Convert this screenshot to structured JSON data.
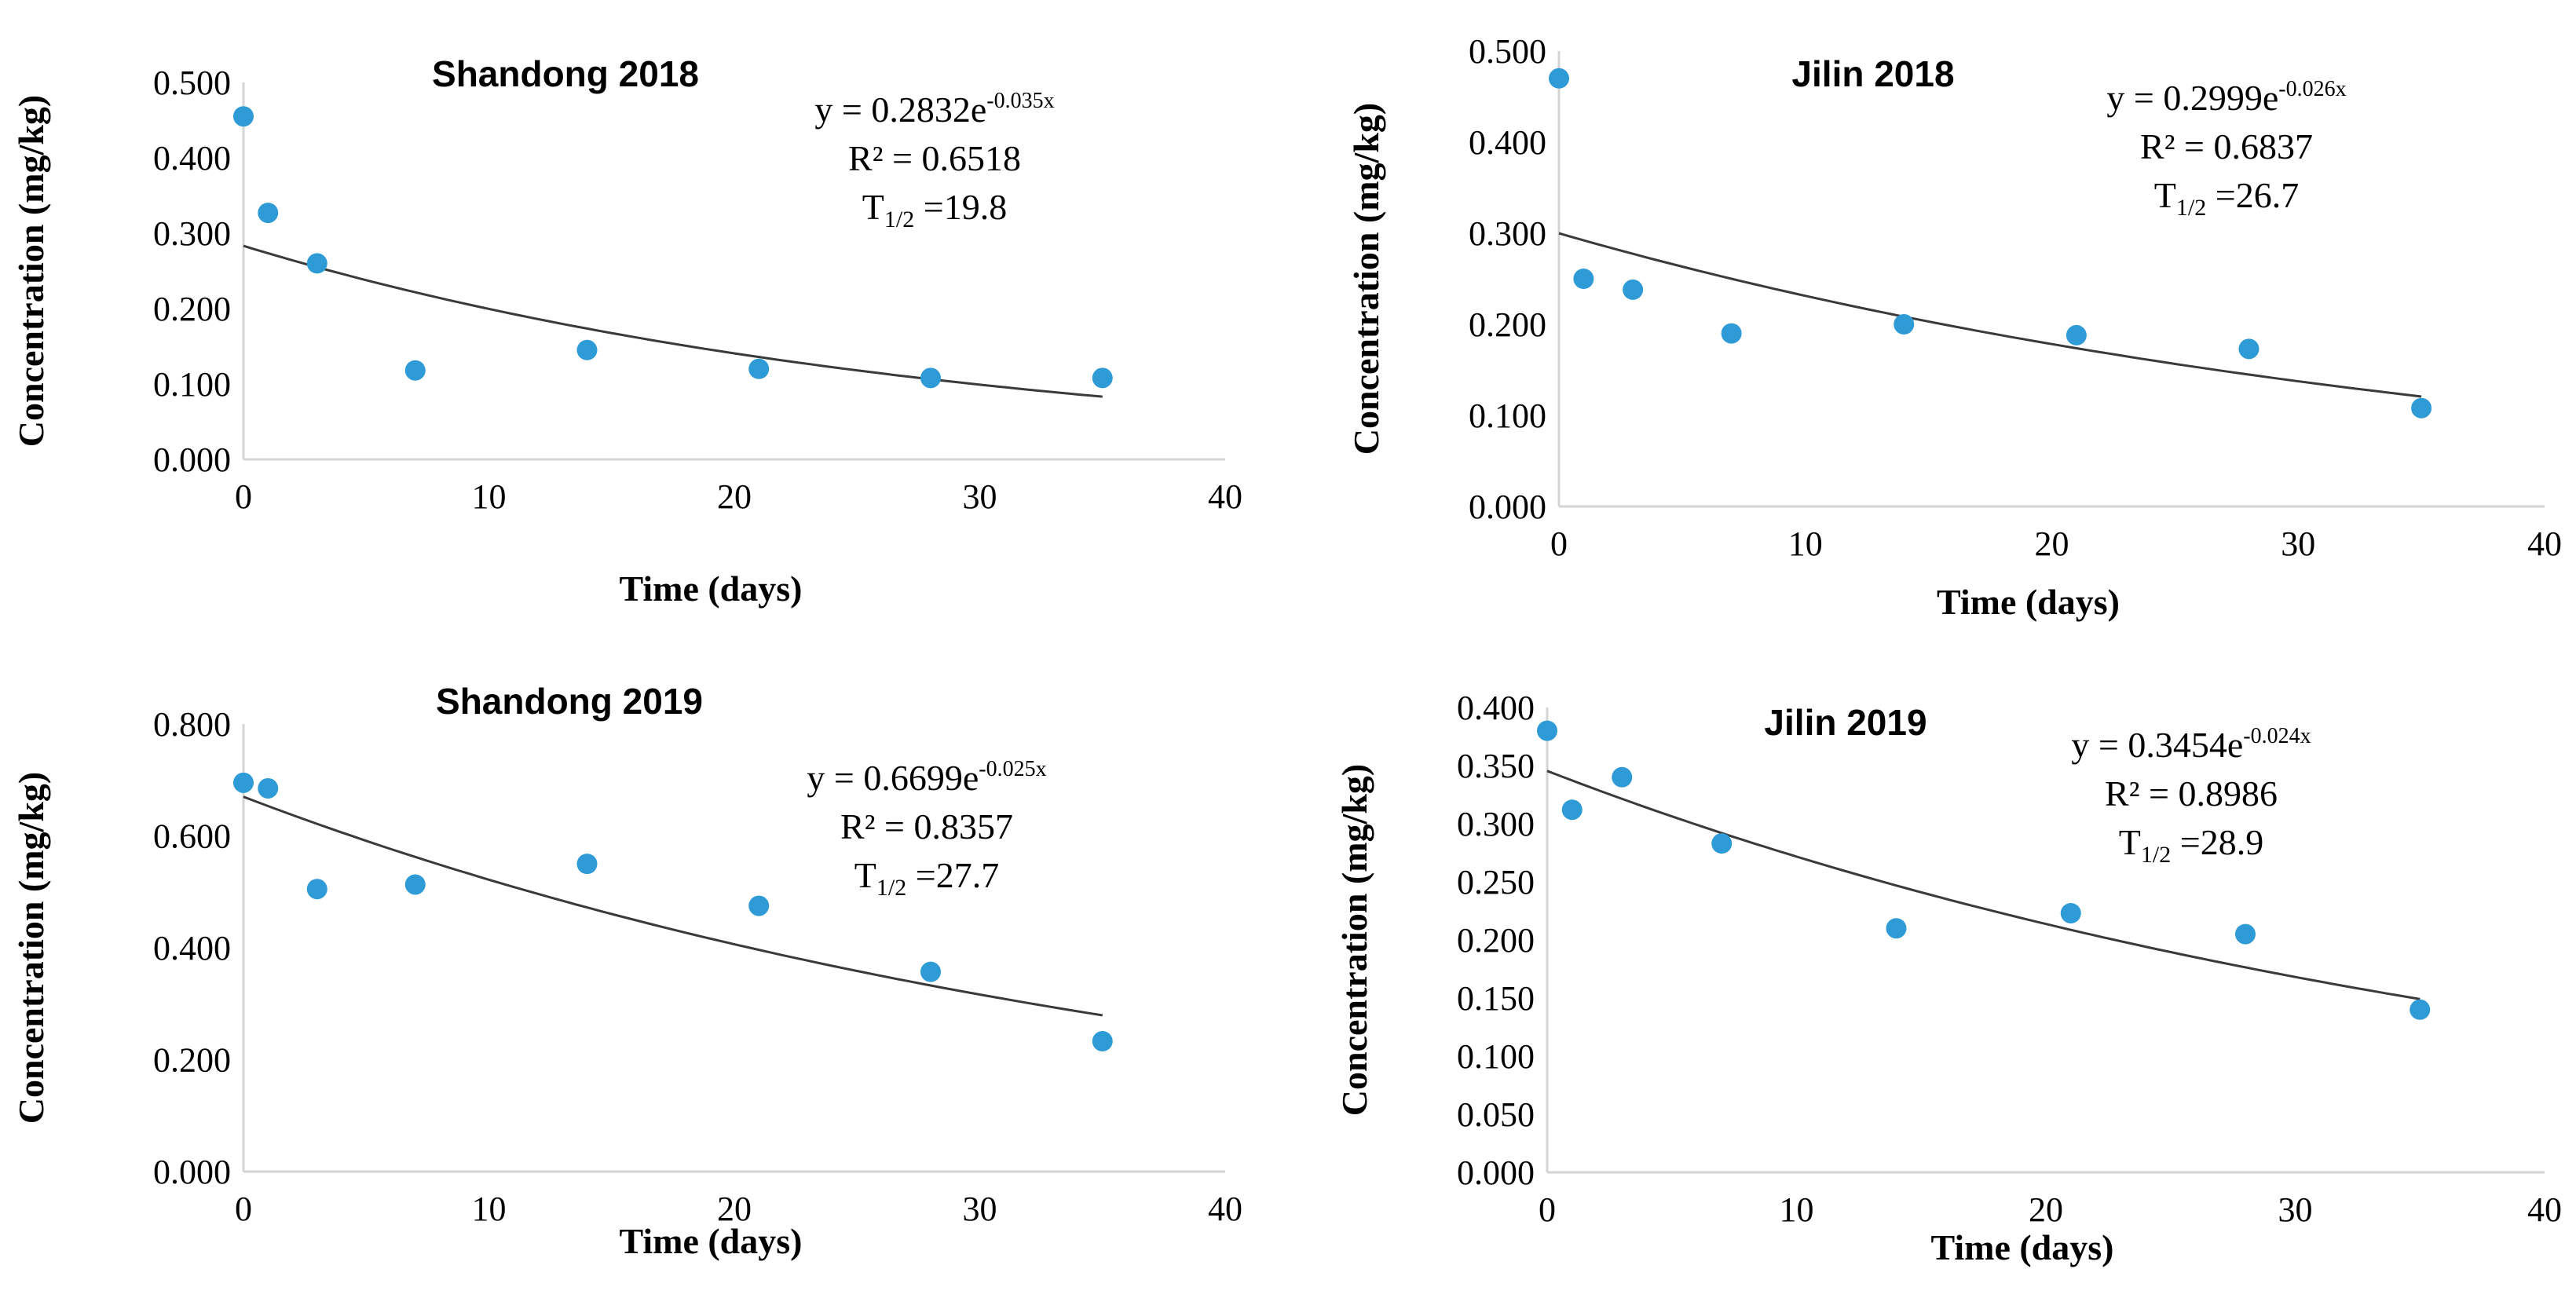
{
  "colors": {
    "point": "#2e9bd6",
    "trend": "#3a3a3a",
    "axis": "#d4d4d4"
  },
  "chart_data": [
    {
      "type": "scatter",
      "title": "Shandong 2018",
      "xlabel": "Time (days)",
      "ylabel": "Concentration (mg/kg)",
      "xlim": [
        0,
        40
      ],
      "ylim": [
        0,
        0.5
      ],
      "xticks": [
        "0",
        "10",
        "20",
        "30",
        "40"
      ],
      "yticks": [
        "0.000",
        "0.100",
        "0.200",
        "0.300",
        "0.400",
        "0.500"
      ],
      "x": [
        0,
        1,
        3,
        7,
        14,
        21,
        28,
        35
      ],
      "y": [
        0.455,
        0.327,
        0.26,
        0.118,
        0.145,
        0.12,
        0.108,
        0.108
      ],
      "trendline": {
        "type": "exponential",
        "a": 0.2832,
        "b": -0.035
      },
      "equation": {
        "prefix": "y = 0.2832e",
        "exponent": "-0.035x"
      },
      "r2": "R² = 0.6518",
      "half_life": {
        "t": "T",
        "sub": "1/2",
        "value": " =19.8"
      },
      "grid": false
    },
    {
      "type": "scatter",
      "title": "Jilin 2018",
      "xlabel": "Time (days)",
      "ylabel": "Concentration (mg/kg)",
      "xlim": [
        0,
        40
      ],
      "ylim": [
        0,
        0.5
      ],
      "xticks": [
        "0",
        "10",
        "20",
        "30",
        "40"
      ],
      "yticks": [
        "0.000",
        "0.100",
        "0.200",
        "0.300",
        "0.400",
        "0.500"
      ],
      "x": [
        0,
        1,
        3,
        7,
        14,
        21,
        28,
        35
      ],
      "y": [
        0.47,
        0.25,
        0.238,
        0.19,
        0.2,
        0.188,
        0.173,
        0.108
      ],
      "trendline": {
        "type": "exponential",
        "a": 0.2999,
        "b": -0.026
      },
      "equation": {
        "prefix": "y = 0.2999e",
        "exponent": "-0.026x"
      },
      "r2": "R² = 0.6837",
      "half_life": {
        "t": "T",
        "sub": "1/2",
        "value": " =26.7"
      },
      "grid": false
    },
    {
      "type": "scatter",
      "title": "Shandong 2019",
      "xlabel": "Time (days)",
      "ylabel": "Concentration (mg/kg)",
      "xlim": [
        0,
        40
      ],
      "ylim": [
        0,
        0.8
      ],
      "xticks": [
        "0",
        "10",
        "20",
        "30",
        "40"
      ],
      "yticks": [
        "0.000",
        "0.200",
        "0.400",
        "0.600",
        "0.800"
      ],
      "x": [
        0,
        1,
        3,
        7,
        14,
        21,
        28,
        35
      ],
      "y": [
        0.695,
        0.685,
        0.505,
        0.513,
        0.55,
        0.475,
        0.357,
        0.233
      ],
      "trendline": {
        "type": "exponential",
        "a": 0.6699,
        "b": -0.025
      },
      "equation": {
        "prefix": "y = 0.6699e",
        "exponent": "-0.025x"
      },
      "r2": "R² = 0.8357",
      "half_life": {
        "t": "T",
        "sub": "1/2",
        "value": " =27.7"
      },
      "grid": false
    },
    {
      "type": "scatter",
      "title": "Jilin 2019",
      "xlabel": "Time (days)",
      "ylabel": "Concentration (mg/kg)",
      "xlim": [
        0,
        40
      ],
      "ylim": [
        0,
        0.4
      ],
      "xticks": [
        "0",
        "10",
        "20",
        "30",
        "40"
      ],
      "yticks": [
        "0.000",
        "0.050",
        "0.100",
        "0.150",
        "0.200",
        "0.250",
        "0.300",
        "0.350",
        "0.400"
      ],
      "x": [
        0,
        1,
        3,
        7,
        14,
        21,
        28,
        35
      ],
      "y": [
        0.38,
        0.312,
        0.34,
        0.283,
        0.21,
        0.223,
        0.205,
        0.14
      ],
      "trendline": {
        "type": "exponential",
        "a": 0.3454,
        "b": -0.024
      },
      "equation": {
        "prefix": "y = 0.3454e",
        "exponent": "-0.024x"
      },
      "r2": "R² = 0.8986",
      "half_life": {
        "t": "T",
        "sub": "1/2",
        "value": " =28.9"
      },
      "grid": false
    }
  ]
}
